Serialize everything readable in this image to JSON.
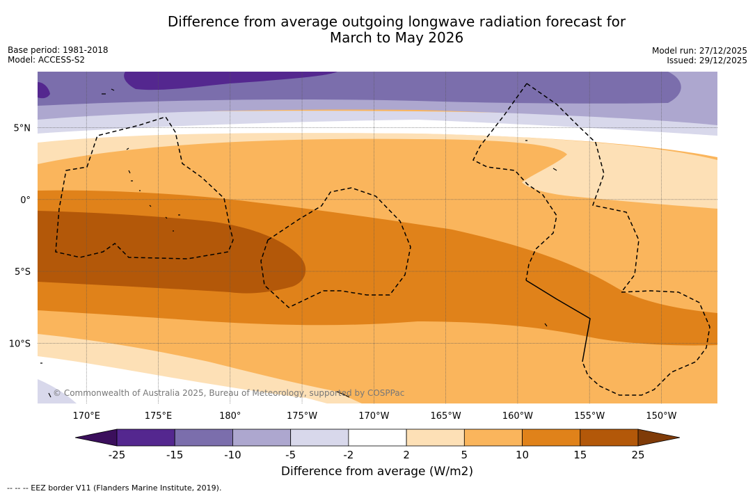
{
  "title_line1": "Difference from average outgoing longwave radiation forecast for",
  "title_line2": "March to May 2026",
  "base_period": "Base period: 1981-2018",
  "model": "Model: ACCESS-S2",
  "model_run": "Model run: 27/12/2025",
  "issued": "Issued: 29/12/2025",
  "credit": "© Commonwealth of Australia 2025, Bureau of Meteorology, supported by COSPPac",
  "colorbar_label": "Difference from average (W/m2)",
  "footnote": "--  --  -- EEZ border V11 (Flanders Marine Institute, 2019).",
  "map_extent": {
    "lon_min": 166.6,
    "lon_max": 213.9,
    "lat_min": -14.2,
    "lat_max": 8.9
  },
  "lat_labels": [
    {
      "lat": 5,
      "text": "5°N"
    },
    {
      "lat": 0,
      "text": "0°"
    },
    {
      "lat": -5,
      "text": "5°S"
    },
    {
      "lat": -10,
      "text": "10°S"
    }
  ],
  "lon_labels": [
    {
      "lon": 170,
      "text": "170°E"
    },
    {
      "lon": 175,
      "text": "175°E"
    },
    {
      "lon": 180,
      "text": "180°"
    },
    {
      "lon": 185,
      "text": "175°W"
    },
    {
      "lon": 190,
      "text": "170°W"
    },
    {
      "lon": 195,
      "text": "165°W"
    },
    {
      "lon": 200,
      "text": "160°W"
    },
    {
      "lon": 205,
      "text": "155°W"
    },
    {
      "lon": 210,
      "text": "150°W"
    }
  ],
  "colorbar": {
    "ticks": [
      "-25",
      "-15",
      "-10",
      "-5",
      "-2",
      "2",
      "5",
      "10",
      "15",
      "25"
    ],
    "colors": [
      "#3b0f5c",
      "#54278f",
      "#7b6eac",
      "#ada7cf",
      "#d8d8eb",
      "#ffffff",
      "#fde0b6",
      "#fab55c",
      "#e0821a",
      "#b35809",
      "#7f3b08"
    ]
  }
}
